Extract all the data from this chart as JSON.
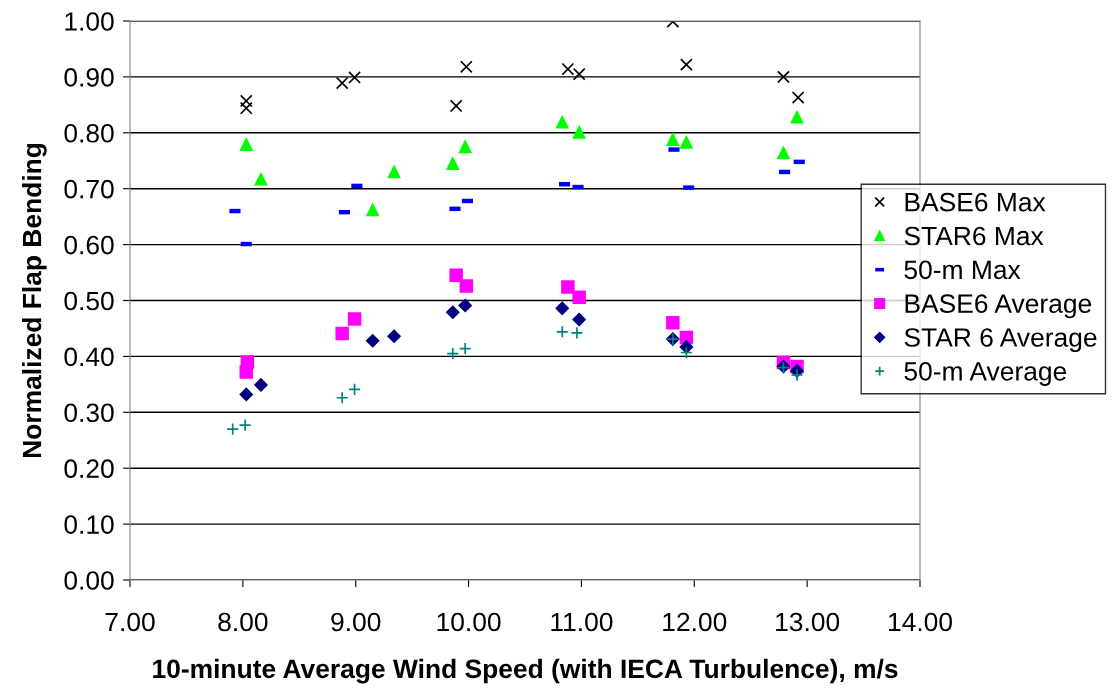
{
  "chart_data": {
    "type": "scatter",
    "xlabel": "10-minute Average Wind Speed (with IECA Turbulence), m/s",
    "ylabel": "Normalized Flap Bending",
    "xlim": [
      7,
      14
    ],
    "ylim": [
      0,
      1
    ],
    "xticks": [
      {
        "value": 7,
        "label": "7.00"
      },
      {
        "value": 8,
        "label": "8.00"
      },
      {
        "value": 9,
        "label": "9.00"
      },
      {
        "value": 10,
        "label": "10.00"
      },
      {
        "value": 11,
        "label": "11.00"
      },
      {
        "value": 12,
        "label": "12.00"
      },
      {
        "value": 13,
        "label": "13.00"
      },
      {
        "value": 14,
        "label": "14.00"
      }
    ],
    "yticks": [
      {
        "value": 0,
        "label": "0.00"
      },
      {
        "value": 0.1,
        "label": "0.10"
      },
      {
        "value": 0.2,
        "label": "0.20"
      },
      {
        "value": 0.3,
        "label": "0.30"
      },
      {
        "value": 0.4,
        "label": "0.40"
      },
      {
        "value": 0.5,
        "label": "0.50"
      },
      {
        "value": 0.6,
        "label": "0.60"
      },
      {
        "value": 0.7,
        "label": "0.70"
      },
      {
        "value": 0.8,
        "label": "0.80"
      },
      {
        "value": 0.9,
        "label": "0.90"
      },
      {
        "value": 1,
        "label": "1.00"
      }
    ],
    "grid": "y",
    "legend": "right",
    "series": [
      {
        "name": "BASE6 Max",
        "color": "#000000",
        "marker": "cross",
        "x": [
          8.03,
          8.03,
          8.88,
          8.99,
          9.89,
          9.98,
          10.88,
          10.98,
          11.81,
          11.93,
          12.79,
          12.92
        ],
        "values": [
          0.857,
          0.844,
          0.889,
          0.899,
          0.848,
          0.918,
          0.914,
          0.905,
          0.999,
          0.922,
          0.9,
          0.863
        ]
      },
      {
        "name": "STAR6 Max",
        "color": "#00ff00",
        "marker": "triangle",
        "x": [
          8.03,
          8.16,
          9.15,
          9.34,
          9.86,
          9.97,
          10.83,
          10.98,
          11.81,
          11.93,
          12.79,
          12.91
        ],
        "values": [
          0.779,
          0.717,
          0.662,
          0.73,
          0.745,
          0.775,
          0.819,
          0.801,
          0.788,
          0.783,
          0.764,
          0.828
        ]
      },
      {
        "name": "50-m Max",
        "color": "#0000ff",
        "x": [
          7.93,
          8.03,
          8.9,
          9.01,
          9.88,
          9.99,
          10.85,
          10.97,
          11.82,
          11.95,
          12.8,
          12.93
        ],
        "values": [
          0.66,
          0.601,
          0.658,
          0.705,
          0.664,
          0.678,
          0.708,
          0.703,
          0.77,
          0.702,
          0.73,
          0.748
        ]
      },
      {
        "name": "BASE6 Average",
        "color": "#ff00ff",
        "marker": "square",
        "x": [
          8.04,
          8.03,
          8.88,
          8.99,
          9.89,
          9.98,
          10.88,
          10.98,
          11.81,
          11.93,
          12.79,
          12.91
        ],
        "values": [
          0.39,
          0.372,
          0.441,
          0.467,
          0.545,
          0.526,
          0.524,
          0.506,
          0.46,
          0.434,
          0.389,
          0.382
        ]
      },
      {
        "name": "STAR 6 Average",
        "color": "#000080",
        "marker": "diamond",
        "x": [
          8.03,
          8.16,
          9.15,
          9.34,
          9.86,
          9.97,
          10.83,
          10.98,
          11.81,
          11.93,
          12.79,
          12.91
        ],
        "values": [
          0.332,
          0.349,
          0.428,
          0.436,
          0.479,
          0.491,
          0.486,
          0.466,
          0.431,
          0.417,
          0.382,
          0.374
        ]
      },
      {
        "name": "50-m Average",
        "color": "#008080",
        "marker": "plus",
        "x": [
          7.91,
          8.02,
          8.88,
          8.99,
          9.86,
          9.97,
          10.83,
          10.96,
          11.81,
          11.93,
          12.79,
          12.91
        ],
        "values": [
          0.27,
          0.277,
          0.326,
          0.341,
          0.405,
          0.414,
          0.444,
          0.442,
          0.431,
          0.407,
          0.38,
          0.367
        ]
      }
    ]
  }
}
